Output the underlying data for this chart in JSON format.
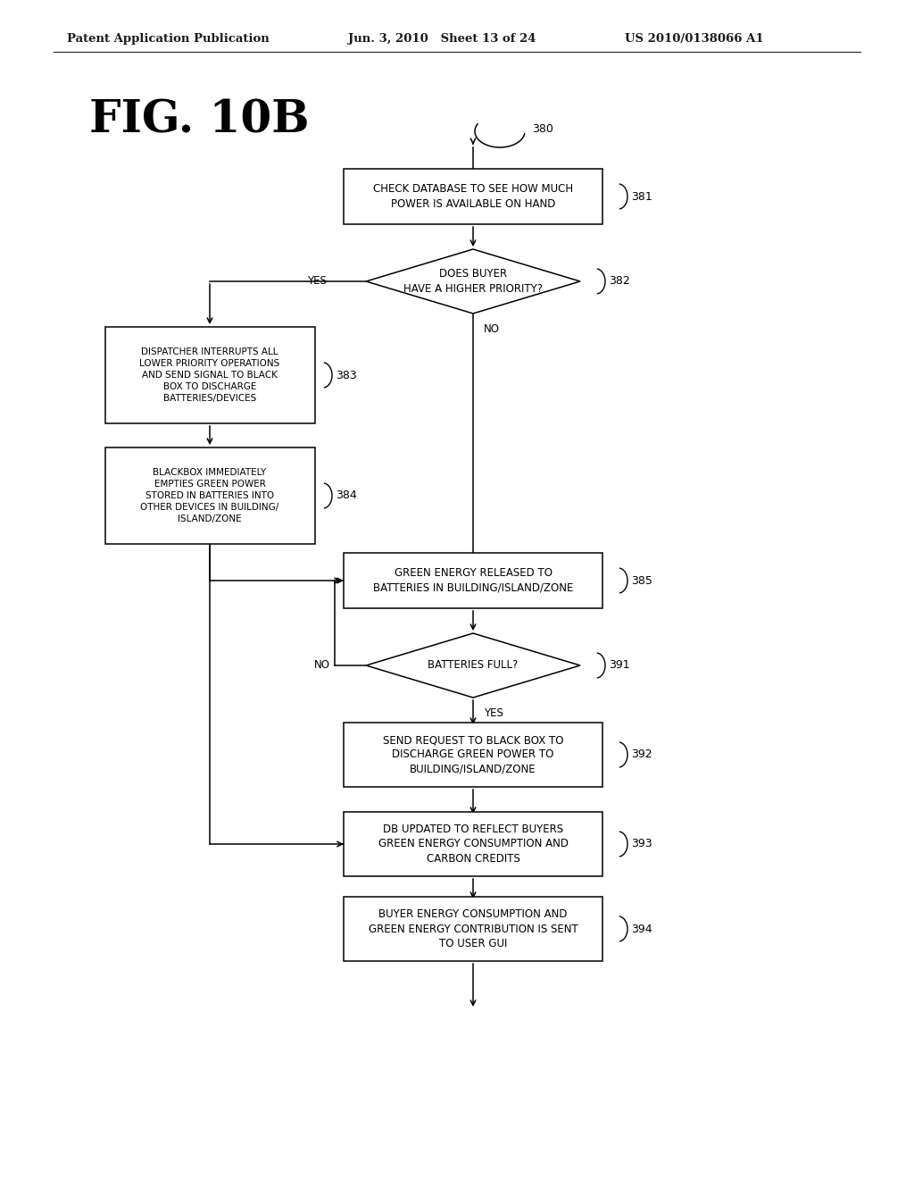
{
  "bg_color": "#ffffff",
  "header_left": "Patent Application Publication",
  "header_mid": "Jun. 3, 2010   Sheet 13 of 24",
  "header_right": "US 2010/0138066 A1",
  "fig_label": "FIG. 10B",
  "text_color": "#000000",
  "line_color": "#000000"
}
